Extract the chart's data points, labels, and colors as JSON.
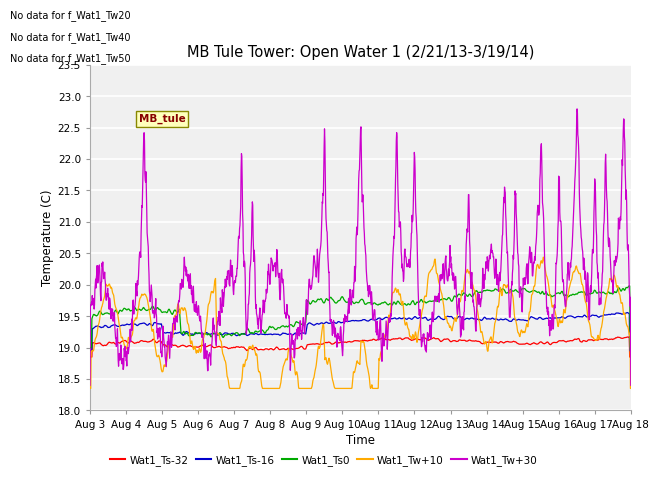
{
  "title": "MB Tule Tower: Open Water 1 (2/21/13-3/19/14)",
  "xlabel": "Time",
  "ylabel": "Temperature (C)",
  "ylim": [
    18.0,
    23.5
  ],
  "yticks": [
    18.0,
    18.5,
    19.0,
    19.5,
    20.0,
    20.5,
    21.0,
    21.5,
    22.0,
    22.5,
    23.0,
    23.5
  ],
  "x_labels": [
    "Aug 3",
    "Aug 4",
    "Aug 5",
    "Aug 6",
    "Aug 7",
    "Aug 8",
    "Aug 9",
    "Aug 10",
    "Aug 11",
    "Aug 12",
    "Aug 13",
    "Aug 14",
    "Aug 15",
    "Aug 16",
    "Aug 17",
    "Aug 18"
  ],
  "annotations": [
    "No data for f_Wat1_Tw20",
    "No data for f_Wat1_Tw40",
    "No data for f_Wat1_Tw50"
  ],
  "mb_tule_label": "MB_tule",
  "legend_entries": [
    "Wat1_Ts-32",
    "Wat1_Ts-16",
    "Wat1_Ts0",
    "Wat1_Tw+10",
    "Wat1_Tw+30"
  ],
  "line_colors": [
    "#ff0000",
    "#0000cc",
    "#00aa00",
    "#ffaa00",
    "#cc00cc"
  ],
  "bg_color": "#ffffff",
  "plot_bg_color": "#f0f0f0",
  "grid_color": "#ffffff",
  "ann_fontsize": 7,
  "title_fontsize": 11,
  "axis_fontsize": 8,
  "legend_fontsize": 8
}
